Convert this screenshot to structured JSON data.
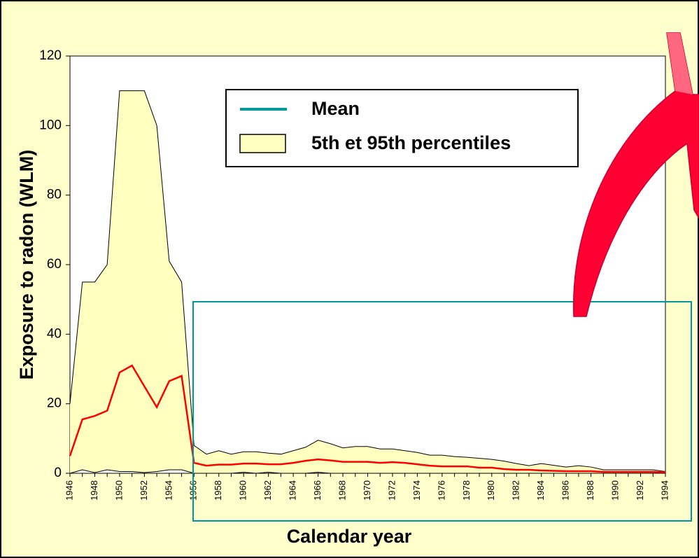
{
  "chart_data": {
    "type": "band-line",
    "xlabel": "Calendar year",
    "ylabel": "Exposure to  radon (WLM)",
    "x": [
      1946,
      1947,
      1948,
      1949,
      1950,
      1951,
      1952,
      1953,
      1954,
      1955,
      1956,
      1957,
      1958,
      1959,
      1960,
      1961,
      1962,
      1963,
      1964,
      1965,
      1966,
      1967,
      1968,
      1969,
      1970,
      1971,
      1972,
      1973,
      1974,
      1975,
      1976,
      1977,
      1978,
      1979,
      1980,
      1981,
      1982,
      1983,
      1984,
      1985,
      1986,
      1987,
      1988,
      1989,
      1990,
      1991,
      1992,
      1993,
      1994
    ],
    "series": [
      {
        "name": "Mean",
        "color": "#ff0000",
        "legend_color": "#009999",
        "values": [
          5,
          15.5,
          16.5,
          18,
          29,
          31,
          25,
          19,
          26.5,
          28,
          3,
          2.2,
          2.5,
          2.5,
          2.8,
          2.8,
          2.6,
          2.6,
          3,
          3.6,
          4,
          3.7,
          3.3,
          3.3,
          3.3,
          3,
          3.2,
          3,
          2.6,
          2.2,
          2,
          2,
          2,
          1.6,
          1.6,
          1.2,
          1,
          1,
          0.8,
          0.7,
          0.6,
          0.6,
          0.6,
          0.4,
          0.4,
          0.4,
          0.4,
          0.4,
          0.3
        ]
      },
      {
        "name": "5th et 95th percentiles",
        "color": "#ffffc0",
        "upper": [
          20,
          55,
          55,
          60,
          110,
          110,
          110,
          100,
          61,
          55,
          8,
          5.5,
          6.5,
          5.5,
          6.2,
          6.2,
          5.8,
          5.5,
          6.5,
          7.5,
          9.5,
          8.5,
          7.3,
          7.7,
          7.7,
          7,
          7,
          6.5,
          6,
          5.2,
          5.2,
          4.8,
          4.6,
          4.3,
          4,
          3.5,
          2.8,
          2.2,
          2.8,
          2.3,
          1.8,
          2.2,
          1.8,
          1,
          1,
          1,
          1,
          1,
          0.5
        ],
        "lower": [
          0,
          1,
          0.2,
          1,
          0.5,
          0.5,
          0.2,
          0.5,
          1,
          1,
          0,
          0,
          0,
          0,
          0.3,
          0,
          0.3,
          0,
          0,
          0,
          0.3,
          0,
          0,
          0,
          0,
          0,
          0,
          0,
          0,
          0,
          0,
          0,
          0,
          0,
          0,
          0,
          0,
          0,
          0,
          0,
          0,
          0,
          0,
          0,
          0,
          0,
          0,
          0,
          0
        ]
      }
    ],
    "xlim": [
      1946,
      1994
    ],
    "xticks": [
      1946,
      1948,
      1950,
      1952,
      1954,
      1956,
      1958,
      1960,
      1962,
      1964,
      1966,
      1968,
      1970,
      1972,
      1974,
      1976,
      1978,
      1980,
      1982,
      1984,
      1986,
      1988,
      1990,
      1992,
      1994
    ],
    "ylim": [
      0,
      120
    ],
    "yticks": [
      0,
      20,
      40,
      60,
      80,
      100,
      120
    ],
    "grid": false
  }
}
